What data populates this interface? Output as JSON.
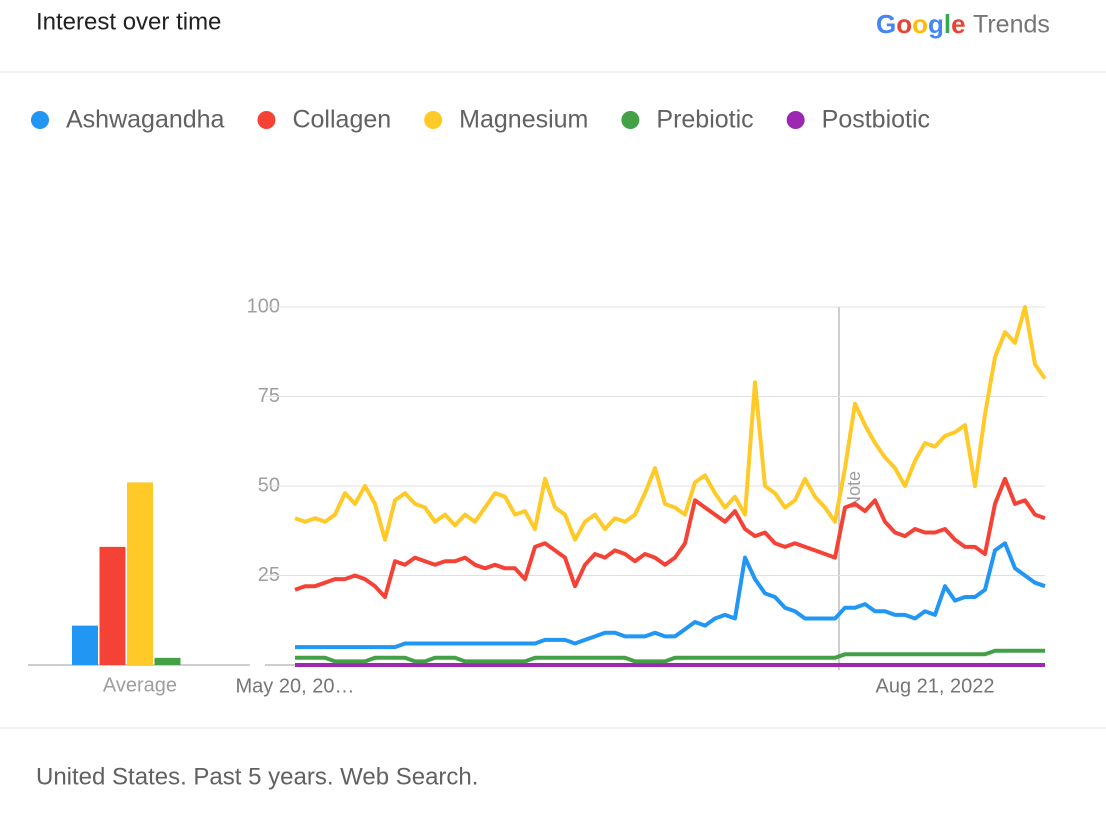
{
  "header": {
    "title": "Interest over time",
    "brand_google": "Google",
    "brand_trends": "Trends"
  },
  "footer": "United States. Past 5 years. Web Search.",
  "chart_data": {
    "type": "line",
    "categories": [
      "May 20, 20…",
      null,
      null,
      null,
      null,
      null,
      null,
      null,
      null,
      null,
      null,
      null,
      null,
      null,
      null,
      null,
      null,
      null,
      null,
      null,
      null,
      null,
      null,
      null,
      null,
      null,
      null,
      null,
      null,
      null,
      null,
      null,
      null,
      null,
      null,
      null,
      null,
      null,
      null,
      null,
      null,
      null,
      null,
      null,
      null,
      null,
      null,
      null,
      null,
      null,
      null,
      null,
      null,
      null,
      null,
      null,
      null,
      null,
      null,
      null,
      null,
      null,
      null,
      null,
      "Aug 21, 2022",
      null,
      null,
      null,
      null,
      null,
      null,
      null,
      null,
      null,
      null,
      null
    ],
    "ylim": [
      0,
      100
    ],
    "yticks": [
      25,
      50,
      75,
      100
    ],
    "grid": true,
    "annotation": "Note",
    "average_label": "Average",
    "series": [
      {
        "name": "Ashwagandha",
        "color": "#2196f3",
        "average": 11,
        "values": [
          5,
          5,
          5,
          5,
          5,
          5,
          5,
          5,
          5,
          5,
          5,
          6,
          6,
          6,
          6,
          6,
          6,
          6,
          6,
          6,
          6,
          6,
          6,
          6,
          6,
          7,
          7,
          7,
          6,
          7,
          8,
          9,
          9,
          8,
          8,
          8,
          9,
          8,
          8,
          10,
          12,
          11,
          13,
          14,
          13,
          30,
          24,
          20,
          19,
          16,
          15,
          13,
          13,
          13,
          13,
          16,
          16,
          17,
          15,
          15,
          14,
          14,
          13,
          15,
          14,
          22,
          18,
          19,
          19,
          21,
          32,
          34,
          27,
          25,
          23,
          22
        ]
      },
      {
        "name": "Collagen",
        "color": "#f44336",
        "average": 33,
        "values": [
          21,
          22,
          22,
          23,
          24,
          24,
          25,
          24,
          22,
          19,
          29,
          28,
          30,
          29,
          28,
          29,
          29,
          30,
          28,
          27,
          28,
          27,
          27,
          24,
          33,
          34,
          32,
          30,
          22,
          28,
          31,
          30,
          32,
          31,
          29,
          31,
          30,
          28,
          30,
          34,
          46,
          44,
          42,
          40,
          43,
          38,
          36,
          37,
          34,
          33,
          34,
          33,
          32,
          31,
          30,
          44,
          45,
          43,
          46,
          40,
          37,
          36,
          38,
          37,
          37,
          38,
          35,
          33,
          33,
          31,
          45,
          52,
          45,
          46,
          42,
          41
        ]
      },
      {
        "name": "Magnesium",
        "color": "#ffca28",
        "average": 51,
        "values": [
          41,
          40,
          41,
          40,
          42,
          48,
          45,
          50,
          45,
          35,
          46,
          48,
          45,
          44,
          40,
          42,
          39,
          42,
          40,
          44,
          48,
          47,
          42,
          43,
          38,
          52,
          44,
          42,
          35,
          40,
          42,
          38,
          41,
          40,
          42,
          48,
          55,
          45,
          44,
          42,
          51,
          53,
          48,
          44,
          47,
          42,
          79,
          50,
          48,
          44,
          46,
          52,
          47,
          44,
          40,
          55,
          73,
          67,
          62,
          58,
          55,
          50,
          57,
          62,
          61,
          64,
          65,
          67,
          50,
          70,
          86,
          93,
          90,
          100,
          84,
          80
        ]
      },
      {
        "name": "Prebiotic",
        "color": "#43a047",
        "average": 2,
        "values": [
          2,
          2,
          2,
          2,
          1,
          1,
          1,
          1,
          2,
          2,
          2,
          2,
          1,
          1,
          2,
          2,
          2,
          1,
          1,
          1,
          1,
          1,
          1,
          1,
          2,
          2,
          2,
          2,
          2,
          2,
          2,
          2,
          2,
          2,
          1,
          1,
          1,
          1,
          2,
          2,
          2,
          2,
          2,
          2,
          2,
          2,
          2,
          2,
          2,
          2,
          2,
          2,
          2,
          2,
          2,
          3,
          3,
          3,
          3,
          3,
          3,
          3,
          3,
          3,
          3,
          3,
          3,
          3,
          3,
          3,
          4,
          4,
          4,
          4,
          4,
          4
        ]
      },
      {
        "name": "Postbiotic",
        "color": "#9c27b0",
        "average": 0,
        "values": [
          0,
          0,
          0,
          0,
          0,
          0,
          0,
          0,
          0,
          0,
          0,
          0,
          0,
          0,
          0,
          0,
          0,
          0,
          0,
          0,
          0,
          0,
          0,
          0,
          0,
          0,
          0,
          0,
          0,
          0,
          0,
          0,
          0,
          0,
          0,
          0,
          0,
          0,
          0,
          0,
          0,
          0,
          0,
          0,
          0,
          0,
          0,
          0,
          0,
          0,
          0,
          0,
          0,
          0,
          0,
          0,
          0,
          0,
          0,
          0,
          0,
          0,
          0,
          0,
          0,
          0,
          0,
          0,
          0,
          0,
          0,
          0,
          0,
          0,
          0,
          0
        ]
      }
    ]
  }
}
